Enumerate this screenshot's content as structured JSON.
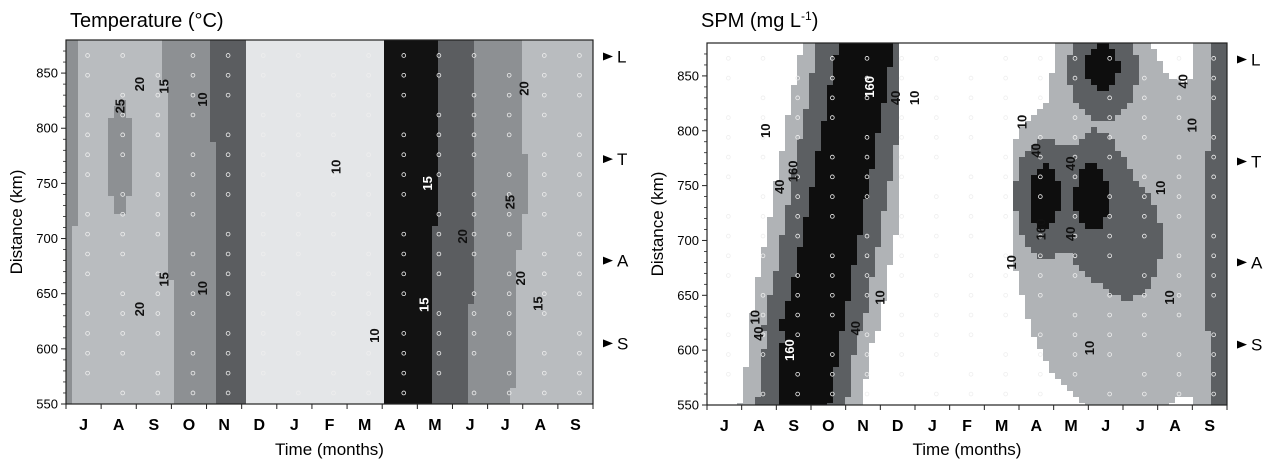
{
  "chart_data": [
    {
      "type": "heatmap",
      "title": "Temperature (°C)",
      "xlabel": "Time (months)",
      "ylabel": "Distance (km)",
      "categories": [
        "J",
        "A",
        "S",
        "O",
        "N",
        "D",
        "J",
        "F",
        "M",
        "A",
        "M",
        "J",
        "J",
        "A",
        "S"
      ],
      "y_ticks": [
        550,
        600,
        650,
        700,
        750,
        800,
        850
      ],
      "ylim": [
        550,
        880
      ],
      "stations": [
        {
          "label": "L",
          "distance": 865
        },
        {
          "label": "T",
          "distance": 772
        },
        {
          "label": "A",
          "distance": 680
        },
        {
          "label": "S",
          "distance": 605
        }
      ],
      "contour_levels": [
        10,
        15,
        20,
        25
      ],
      "contour_labels": [
        {
          "text": "25",
          "month": 1.05,
          "distance": 820
        },
        {
          "text": "20",
          "month": 1.6,
          "distance": 840
        },
        {
          "text": "15",
          "month": 2.3,
          "distance": 838
        },
        {
          "text": "10",
          "month": 3.4,
          "distance": 826
        },
        {
          "text": "15",
          "month": 2.3,
          "distance": 663
        },
        {
          "text": "10",
          "month": 3.4,
          "distance": 655
        },
        {
          "text": "20",
          "month": 1.6,
          "distance": 636
        },
        {
          "text": "10",
          "month": 7.2,
          "distance": 765
        },
        {
          "text": "15",
          "month": 9.8,
          "distance": 750
        },
        {
          "text": "10",
          "month": 8.3,
          "distance": 612
        },
        {
          "text": "15",
          "month": 9.7,
          "distance": 640
        },
        {
          "text": "20",
          "month": 10.8,
          "distance": 702
        },
        {
          "text": "25",
          "month": 12.15,
          "distance": 733
        },
        {
          "text": "20",
          "month": 12.55,
          "distance": 836
        },
        {
          "text": "20",
          "month": 12.45,
          "distance": 664
        },
        {
          "text": "15",
          "month": 12.95,
          "distance": 641
        }
      ]
    },
    {
      "type": "heatmap",
      "title": "SPM (mg L-1)",
      "title_main": "SPM (mg L",
      "title_sup": "-1",
      "title_end": ")",
      "xlabel": "Time (months)",
      "ylabel": "Distance (km)",
      "categories": [
        "J",
        "A",
        "S",
        "O",
        "N",
        "D",
        "J",
        "F",
        "M",
        "A",
        "M",
        "J",
        "J",
        "A",
        "S"
      ],
      "y_ticks": [
        550,
        600,
        650,
        700,
        750,
        800,
        850
      ],
      "ylim": [
        550,
        880
      ],
      "stations": [
        {
          "label": "L",
          "distance": 865
        },
        {
          "label": "T",
          "distance": 772
        },
        {
          "label": "A",
          "distance": 680
        },
        {
          "label": "S",
          "distance": 605
        }
      ],
      "contour_levels": [
        10,
        40,
        160
      ],
      "contour_labels": [
        {
          "text": "160",
          "month": 4.2,
          "distance": 840
        },
        {
          "text": "40",
          "month": 4.95,
          "distance": 830
        },
        {
          "text": "10",
          "month": 5.5,
          "distance": 830
        },
        {
          "text": "10",
          "month": 1.2,
          "distance": 800
        },
        {
          "text": "160",
          "month": 2.0,
          "distance": 763
        },
        {
          "text": "40",
          "month": 1.6,
          "distance": 749
        },
        {
          "text": "10",
          "month": 4.5,
          "distance": 648
        },
        {
          "text": "40",
          "month": 3.8,
          "distance": 620
        },
        {
          "text": "10",
          "month": 0.9,
          "distance": 630
        },
        {
          "text": "40",
          "month": 1.0,
          "distance": 615
        },
        {
          "text": "160",
          "month": 1.9,
          "distance": 600
        },
        {
          "text": "10",
          "month": 8.6,
          "distance": 808
        },
        {
          "text": "40",
          "month": 9.0,
          "distance": 782
        },
        {
          "text": "40",
          "month": 10.0,
          "distance": 770
        },
        {
          "text": "160",
          "month": 9.15,
          "distance": 710
        },
        {
          "text": "40",
          "month": 10.0,
          "distance": 706
        },
        {
          "text": "10",
          "month": 8.3,
          "distance": 680
        },
        {
          "text": "10",
          "month": 12.6,
          "distance": 748
        },
        {
          "text": "10",
          "month": 12.85,
          "distance": 648
        },
        {
          "text": "10",
          "month": 10.55,
          "distance": 602
        },
        {
          "text": "40",
          "month": 13.25,
          "distance": 845
        },
        {
          "text": "10",
          "month": 13.5,
          "distance": 805
        }
      ]
    }
  ]
}
